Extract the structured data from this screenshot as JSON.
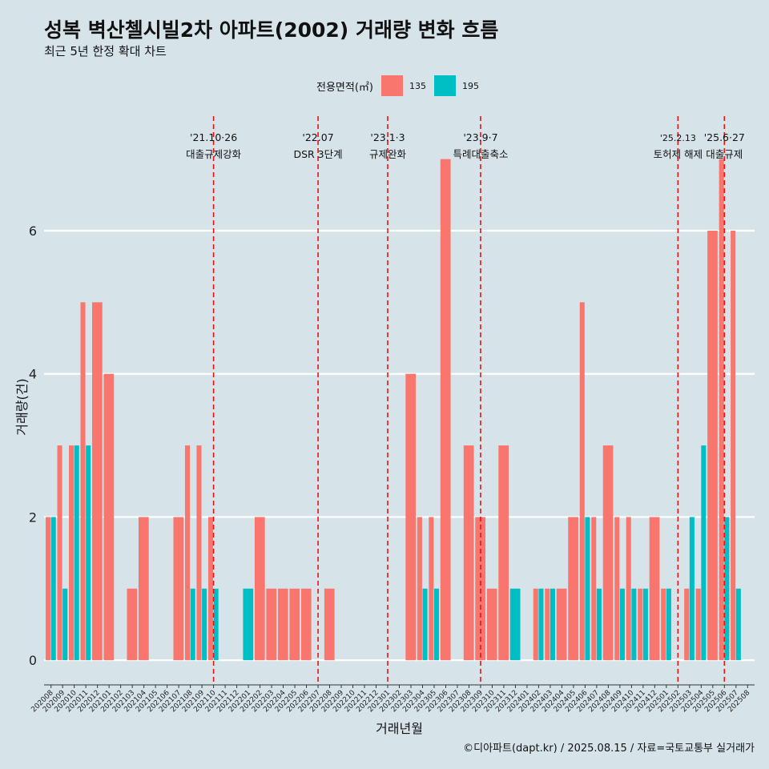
{
  "title": "성복 벽산첼시빌2차 아파트(2002) 거래량 변화 흐름",
  "subtitle": "최근 5년 한정 확대 차트",
  "caption": "©디아파트(dapt.kr) / 2025.08.15 / 자료=국토교통부 실거래가",
  "legend": {
    "title": "전용면적(㎡)",
    "items": [
      {
        "label": "135",
        "color": "#f8766d"
      },
      {
        "label": "195",
        "color": "#00bfc4"
      }
    ]
  },
  "chart_data": {
    "type": "bar",
    "xlabel": "거래년월",
    "ylabel": "거래량(건)",
    "ylim": [
      -0.3,
      7.6
    ],
    "yticks": [
      0,
      2,
      4,
      6
    ],
    "grid": true,
    "categories": [
      "202008",
      "202009",
      "202010",
      "202011",
      "202012",
      "202101",
      "202102",
      "202103",
      "202104",
      "202105",
      "202106",
      "202107",
      "202108",
      "202109",
      "202110",
      "202111",
      "202112",
      "202201",
      "202202",
      "202203",
      "202204",
      "202205",
      "202206",
      "202207",
      "202208",
      "202209",
      "202210",
      "202211",
      "202212",
      "202301",
      "202302",
      "202303",
      "202304",
      "202305",
      "202306",
      "202307",
      "202308",
      "202309",
      "202310",
      "202311",
      "202312",
      "202401",
      "202402",
      "202403",
      "202404",
      "202405",
      "202406",
      "202407",
      "202408",
      "202409",
      "202410",
      "202411",
      "202412",
      "202501",
      "202502",
      "202503",
      "202504",
      "202505",
      "202506",
      "202507",
      "202508"
    ],
    "series": [
      {
        "name": "135",
        "color": "#f8766d",
        "values": [
          2,
          3,
          3,
          5,
          5,
          4,
          0,
          1,
          2,
          0,
          0,
          2,
          3,
          3,
          2,
          0,
          0,
          0,
          2,
          1,
          1,
          1,
          1,
          0,
          1,
          0,
          0,
          0,
          0,
          0,
          0,
          4,
          2,
          2,
          7,
          0,
          3,
          2,
          1,
          3,
          0,
          0,
          1,
          1,
          1,
          2,
          5,
          2,
          3,
          2,
          2,
          1,
          2,
          1,
          0,
          1,
          1,
          6,
          7,
          6,
          0
        ]
      },
      {
        "name": "195",
        "color": "#00bfc4",
        "values": [
          2,
          1,
          3,
          3,
          0,
          0,
          0,
          0,
          0,
          0,
          0,
          0,
          1,
          1,
          1,
          0,
          0,
          1,
          0,
          0,
          0,
          0,
          0,
          0,
          0,
          0,
          0,
          0,
          0,
          0,
          0,
          0,
          1,
          1,
          0,
          0,
          0,
          0,
          0,
          0,
          1,
          0,
          1,
          1,
          0,
          0,
          2,
          1,
          0,
          1,
          1,
          1,
          0,
          1,
          0,
          2,
          3,
          0,
          2,
          1,
          0
        ]
      }
    ],
    "annotations": [
      {
        "date": "202110",
        "line1": "'21.10·26",
        "line2": "대출규제강화"
      },
      {
        "date": "202207",
        "line1": "'22.07",
        "line2": "DSR 3단계"
      },
      {
        "date": "202301",
        "line1": "'23.1·3",
        "line2": "규제완화"
      },
      {
        "date": "202309",
        "line1": "'23.9·7",
        "line2": "특례대출축소"
      },
      {
        "date": "202502",
        "line1": "'25.2.13",
        "line2": "토허제 해제"
      },
      {
        "date": "202506",
        "line1": "'25.6·27",
        "line2": "대출규제"
      }
    ]
  }
}
